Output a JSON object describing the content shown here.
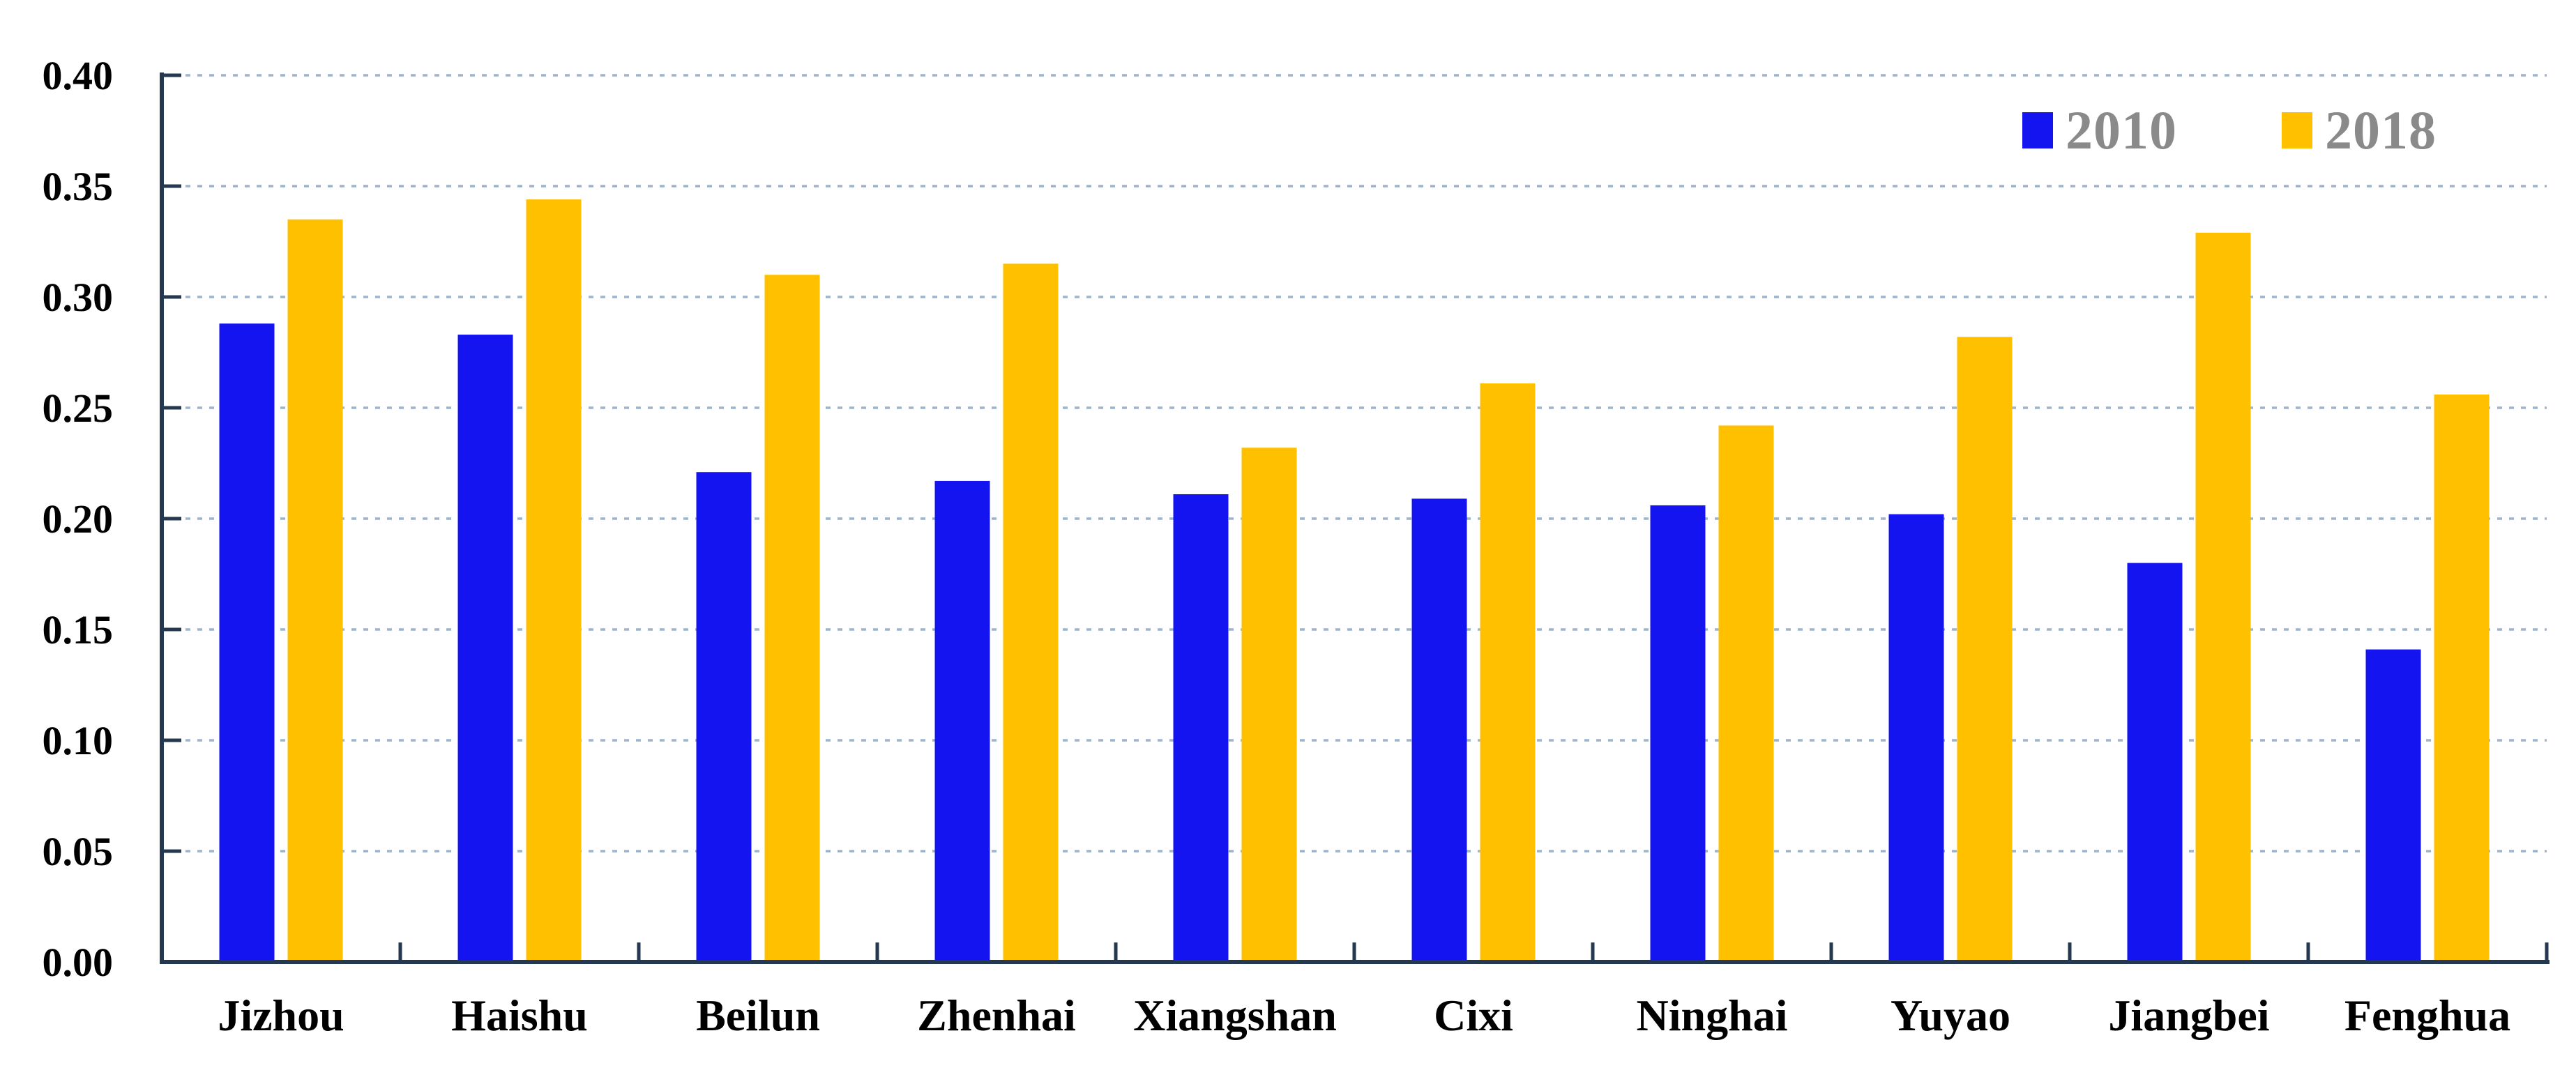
{
  "chart_data": {
    "type": "bar",
    "title": "",
    "xlabel": "",
    "ylabel": "",
    "categories": [
      "Jizhou",
      "Haishu",
      "Beilun",
      "Zhenhai",
      "Xiangshan",
      "Cixi",
      "Ninghai",
      "Yuyao",
      "Jiangbei",
      "Fenghua"
    ],
    "series": [
      {
        "name": "2010",
        "color": "#1414f0",
        "values": [
          0.288,
          0.283,
          0.221,
          0.217,
          0.211,
          0.209,
          0.206,
          0.202,
          0.18,
          0.141
        ]
      },
      {
        "name": "2018",
        "color": "#ffc000",
        "values": [
          0.335,
          0.344,
          0.31,
          0.315,
          0.232,
          0.261,
          0.242,
          0.282,
          0.329,
          0.256
        ]
      }
    ],
    "ylim": [
      0.0,
      0.4
    ],
    "ytick_step": 0.05,
    "ytick_labels": [
      "0.00",
      "0.05",
      "0.10",
      "0.15",
      "0.20",
      "0.25",
      "0.30",
      "0.35",
      "0.40"
    ],
    "grid": "horizontal-dashed",
    "legend_position": "top-right-inside"
  },
  "legend": {
    "items": [
      {
        "label": "2010",
        "color": "#1414f0"
      },
      {
        "label": "2018",
        "color": "#ffc000"
      }
    ]
  },
  "colors": {
    "background": "#ffffff",
    "axis": "#243850",
    "gridline": "#9cb4cc",
    "axis_tick": "#243850",
    "ytick_label": "#000000",
    "xtick_label": "#000000",
    "legend_text": "#8a8a8a",
    "bar_2010": "#1414f0",
    "bar_2018": "#ffc000"
  }
}
